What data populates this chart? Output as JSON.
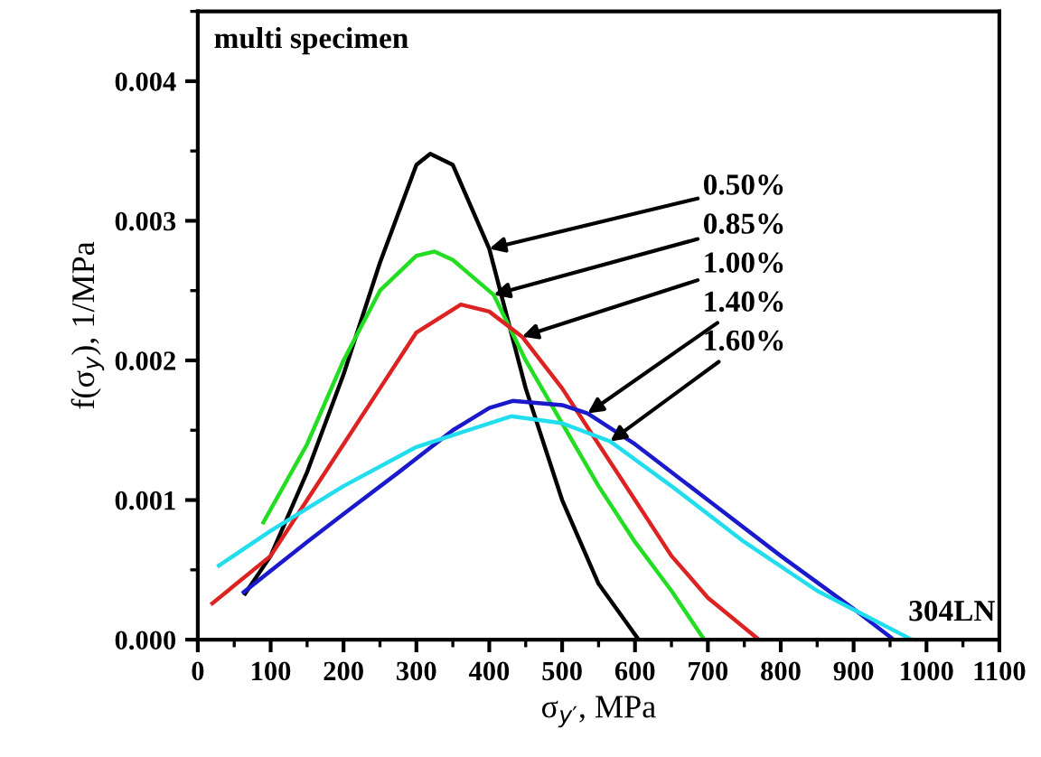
{
  "chart_data": {
    "type": "line",
    "xlabel": "σ$_{y′}$, MPa",
    "ylabel": "f(σ$_{y}$), 1/MPa",
    "xlim": [
      0,
      1100
    ],
    "xticks": [
      0,
      100,
      200,
      300,
      400,
      500,
      600,
      700,
      800,
      900,
      1000,
      1100
    ],
    "ylim": [
      0,
      0.0045
    ],
    "yticks": [
      {
        "value": 0,
        "label": "0.000"
      },
      0.001,
      0.002,
      0.003,
      0.004
    ],
    "grid": false,
    "marker": "none",
    "line_style": "solid",
    "annotations": [
      "multi specimen",
      "304LN",
      {
        "text": "0.50%",
        "x": 400,
        "y": 0.0028
      },
      {
        "text": "0.85%",
        "x": 406,
        "y": 0.00247
      },
      {
        "text": "1.00%",
        "x": 445,
        "y": 0.00217
      },
      {
        "text": "1.40%",
        "x": 535,
        "y": 0.00162
      },
      {
        "text": "1.60%",
        "x": 566,
        "y": 0.00142
      }
    ],
    "series": [
      {
        "color": "#000000",
        "x": [
          65,
          100,
          150,
          200,
          250,
          300,
          319,
          350,
          400,
          450,
          500,
          550,
          605
        ],
        "values": [
          0.00033,
          0.0006,
          0.0012,
          0.0019,
          0.0027,
          0.0034,
          0.00348,
          0.0034,
          0.0028,
          0.0018,
          0.001,
          0.0004,
          0
        ]
      },
      {
        "color": "#22dd22",
        "x": [
          90,
          150,
          200,
          250,
          300,
          325,
          350,
          406,
          450,
          500,
          550,
          600,
          650,
          695
        ],
        "values": [
          0.00084,
          0.0014,
          0.002,
          0.0025,
          0.00275,
          0.00278,
          0.00272,
          0.00247,
          0.002,
          0.00155,
          0.0011,
          0.0007,
          0.00035,
          0
        ]
      },
      {
        "color": "#dd2222",
        "x": [
          20,
          100,
          150,
          200,
          250,
          300,
          361,
          400,
          445,
          500,
          550,
          600,
          650,
          700,
          770
        ],
        "values": [
          0.00026,
          0.0006,
          0.001,
          0.0014,
          0.0018,
          0.0022,
          0.0024,
          0.00235,
          0.00217,
          0.0018,
          0.0014,
          0.001,
          0.0006,
          0.0003,
          0
        ]
      },
      {
        "color": "#1a1acc",
        "x": [
          63,
          150,
          200,
          276,
          350,
          400,
          432,
          500,
          535,
          600,
          700,
          800,
          900,
          955
        ],
        "values": [
          0.00034,
          0.0007,
          0.0009,
          0.0012,
          0.0015,
          0.00166,
          0.00171,
          0.00168,
          0.00162,
          0.0014,
          0.001,
          0.0006,
          0.00022,
          0
        ]
      },
      {
        "color": "#22ddee",
        "x": [
          29,
          100,
          200,
          300,
          430,
          500,
          566,
          650,
          750,
          850,
          980
        ],
        "values": [
          0.00053,
          0.00078,
          0.0011,
          0.00138,
          0.0016,
          0.00155,
          0.00142,
          0.0011,
          0.0007,
          0.00035,
          0
        ]
      }
    ]
  }
}
